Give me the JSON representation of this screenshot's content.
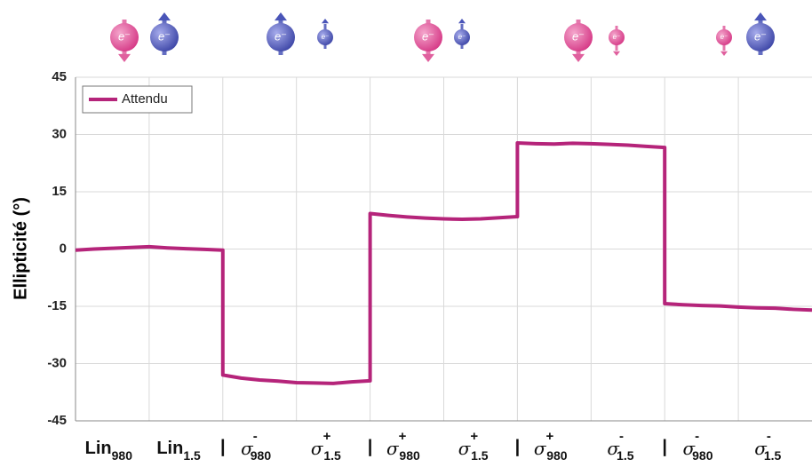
{
  "chart_data": {
    "type": "line",
    "ylabel": "Ellipticité (°)",
    "icon_label": "e⁻",
    "x": [
      0,
      0.25,
      0.5,
      0.75,
      1,
      1.25,
      1.5,
      1.75,
      2,
      2,
      2.25,
      2.5,
      2.75,
      3,
      3.25,
      3.5,
      3.75,
      4,
      4,
      4.25,
      4.5,
      4.75,
      5,
      5.25,
      5.5,
      5.75,
      6,
      6,
      6.25,
      6.5,
      6.75,
      7,
      7.25,
      7.5,
      7.75,
      8,
      8,
      8.25,
      8.5,
      8.75,
      9,
      9.25,
      9.5,
      9.75,
      10
    ],
    "series": [
      {
        "name": "Attendu",
        "color": "#b5247a",
        "values": [
          -0.3,
          0,
          0.2,
          0.4,
          0.6,
          0.3,
          0.1,
          -0.1,
          -0.3,
          -33,
          -33.8,
          -34.3,
          -34.6,
          -35,
          -35.1,
          -35.2,
          -34.8,
          -34.5,
          9.3,
          8.8,
          8.4,
          8.1,
          7.9,
          7.8,
          7.9,
          8.2,
          8.5,
          27.8,
          27.6,
          27.5,
          27.7,
          27.6,
          27.4,
          27.2,
          26.9,
          26.6,
          -14.3,
          -14.6,
          -14.8,
          -14.9,
          -15.2,
          -15.4,
          -15.5,
          -15.8,
          -16
        ]
      }
    ],
    "xlim": [
      0,
      10
    ],
    "xgrid": [
      1,
      2,
      3,
      4,
      5,
      6,
      7,
      8,
      9
    ],
    "ylim": [
      -45,
      45
    ],
    "yticks": [
      -45,
      -30,
      -15,
      0,
      15,
      30,
      45
    ],
    "grid": true,
    "legend": "upper left",
    "x_labels": [
      {
        "base": "Lin",
        "sub": "980"
      },
      {
        "base": "Lin",
        "sub": "1.5"
      },
      {
        "base": "σ",
        "sup": "-",
        "sub": "980"
      },
      {
        "base": "σ",
        "sup": "+",
        "sub": "1.5"
      },
      {
        "base": "σ",
        "sup": "+",
        "sub": "980"
      },
      {
        "base": "σ",
        "sup": "+",
        "sub": "1.5"
      },
      {
        "base": "σ",
        "sup": "+",
        "sub": "980"
      },
      {
        "base": "σ",
        "sup": "-",
        "sub": "1.5"
      },
      {
        "base": "σ",
        "sup": "-",
        "sub": "980"
      },
      {
        "base": "σ",
        "sup": "-",
        "sub": "1.5"
      }
    ],
    "separators": [
      "|",
      "|",
      "|",
      "|"
    ]
  }
}
